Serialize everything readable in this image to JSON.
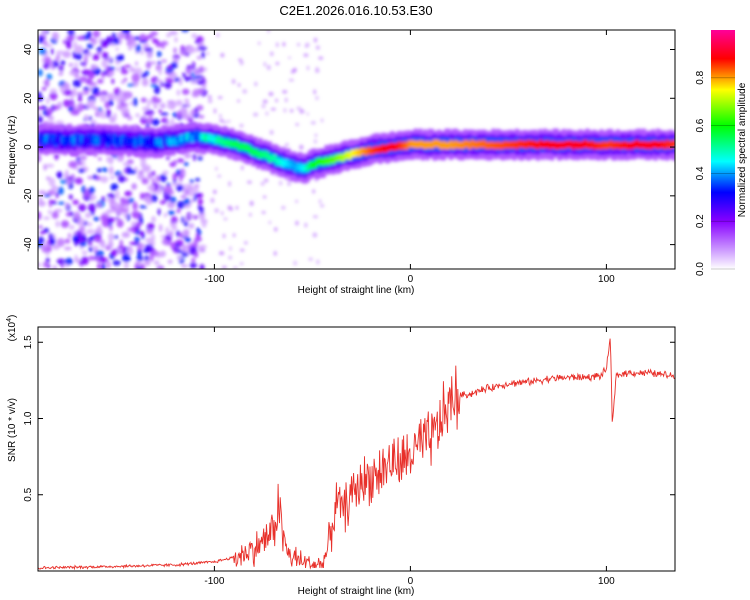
{
  "title": "C2E1.2026.016.10.53.E30",
  "chart_data": [
    {
      "type": "heatmap",
      "name": "spectrogram",
      "xlabel": "Height of straight line (km)",
      "ylabel": "Frequency (Hz)",
      "xlim": [
        -190,
        135
      ],
      "ylim": [
        -50,
        48
      ],
      "xticks": [
        -100,
        0,
        100
      ],
      "yticks": [
        -40,
        -20,
        0,
        20,
        40
      ],
      "colorbar": {
        "label": "Normalized spectral amplitude",
        "range": [
          0,
          1
        ],
        "ticks": [
          "0.0",
          "0.2",
          "0.4",
          "0.6",
          "0.8"
        ],
        "tick_values": [
          0.0,
          0.2,
          0.4,
          0.6,
          0.8
        ],
        "colors": [
          "#ffffff",
          "#8800ff",
          "#0000ff",
          "#00ffff",
          "#00ff00",
          "#ffff00",
          "#ff0000",
          "#ff00aa"
        ]
      },
      "ridge": {
        "description": "dominant frequency track",
        "x": [
          -190,
          -160,
          -130,
          -110,
          -100,
          -90,
          -80,
          -70,
          -60,
          -55,
          -50,
          -40,
          -30,
          -20,
          -10,
          0,
          20,
          50,
          80,
          100,
          120,
          135
        ],
        "y": [
          3,
          3,
          2,
          4,
          3,
          1,
          -2,
          -5,
          -8,
          -9,
          -7,
          -5,
          -3,
          -1,
          0,
          1,
          1,
          1,
          1,
          1,
          1,
          1
        ],
        "amplitude": [
          0.35,
          0.35,
          0.35,
          0.45,
          0.5,
          0.55,
          0.55,
          0.5,
          0.4,
          0.45,
          0.6,
          0.65,
          0.75,
          0.85,
          0.9,
          0.8,
          0.8,
          0.85,
          0.9,
          0.85,
          0.9,
          0.85
        ]
      },
      "noise_region_x": [
        -190,
        -105
      ]
    },
    {
      "type": "line",
      "name": "snr",
      "xlabel": "Height of straight line (km)",
      "ylabel": "SNR (10 * v/v)",
      "multiplier": "(x10",
      "multiplier_exp": "4",
      "multiplier_close": ")",
      "color": "#e8302a",
      "xlim": [
        -190,
        135
      ],
      "ylim": [
        0,
        1.6
      ],
      "xticks": [
        -100,
        0,
        100
      ],
      "yticks": [
        0.5,
        1.0,
        1.5
      ],
      "ytick_labels": [
        "0.5",
        "1.0",
        "1.5"
      ],
      "series": [
        {
          "name": "SNR",
          "x": [
            -190,
            -150,
            -120,
            -100,
            -90,
            -80,
            -75,
            -70,
            -67,
            -65,
            -62,
            -55,
            -50,
            -45,
            -42,
            -40,
            -38,
            -36,
            -34,
            -30,
            -25,
            -20,
            -15,
            -10,
            -5,
            0,
            5,
            10,
            15,
            20,
            25,
            30,
            40,
            50,
            60,
            70,
            80,
            90,
            97,
            100,
            102,
            103,
            105,
            110,
            120,
            135
          ],
          "values": [
            0.02,
            0.03,
            0.04,
            0.06,
            0.09,
            0.14,
            0.2,
            0.26,
            0.45,
            0.22,
            0.1,
            0.06,
            0.04,
            0.04,
            0.15,
            0.3,
            0.45,
            0.42,
            0.4,
            0.5,
            0.58,
            0.62,
            0.65,
            0.72,
            0.7,
            0.76,
            0.82,
            0.85,
            0.96,
            1.1,
            1.15,
            1.16,
            1.2,
            1.23,
            1.24,
            1.26,
            1.27,
            1.27,
            1.28,
            1.32,
            1.55,
            0.95,
            1.28,
            1.3,
            1.3,
            1.28
          ]
        }
      ]
    }
  ]
}
